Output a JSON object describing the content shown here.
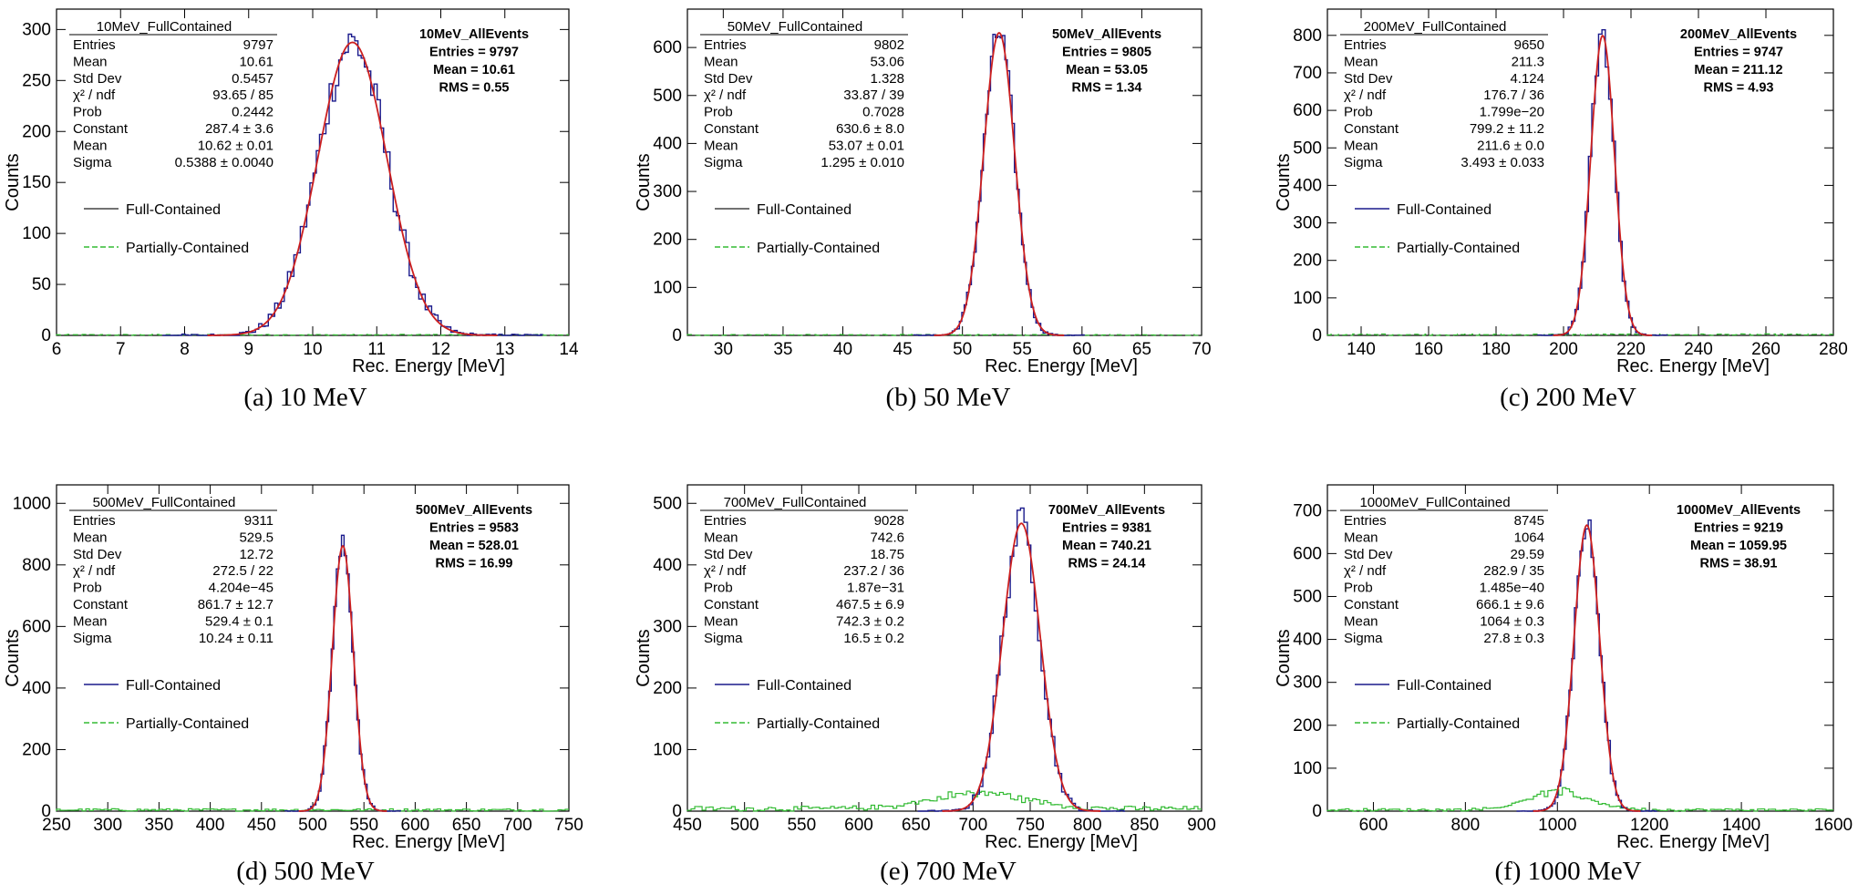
{
  "panels": [
    {
      "caption": "(a)  10 MeV",
      "stats_title": "10MeV_FullContained",
      "stats": [
        {
          "label": "Entries",
          "value": "9797"
        },
        {
          "label": "Mean",
          "value": "10.61"
        },
        {
          "label": "Std Dev",
          "value": "0.5457"
        },
        {
          "label": "χ² / ndf",
          "value": "93.65 / 85"
        },
        {
          "label": "Prob",
          "value": "0.2442"
        },
        {
          "label": "Constant",
          "value": "287.4 ± 3.6"
        },
        {
          "label": "Mean",
          "value": "10.62 ± 0.01"
        },
        {
          "label": "Sigma",
          "value": "0.5388 ± 0.0040"
        }
      ],
      "all_events": [
        "10MeV_AllEvents",
        "Entries = 9797",
        "Mean = 10.61",
        "RMS = 0.55"
      ],
      "legend": [
        "Full-Contained",
        "Partially-Contained"
      ]
    },
    {
      "caption": "(b)  50 MeV",
      "stats_title": "50MeV_FullContained",
      "stats": [
        {
          "label": "Entries",
          "value": "9802"
        },
        {
          "label": "Mean",
          "value": "53.06"
        },
        {
          "label": "Std Dev",
          "value": "1.328"
        },
        {
          "label": "χ² / ndf",
          "value": "33.87 / 39"
        },
        {
          "label": "Prob",
          "value": "0.7028"
        },
        {
          "label": "Constant",
          "value": "630.6 ± 8.0"
        },
        {
          "label": "Mean",
          "value": "53.07 ± 0.01"
        },
        {
          "label": "Sigma",
          "value": "1.295 ± 0.010"
        }
      ],
      "all_events": [
        "50MeV_AllEvents",
        "Entries = 9805",
        "Mean = 53.05",
        "RMS = 1.34"
      ],
      "legend": [
        "Full-Contained",
        "Partially-Contained"
      ]
    },
    {
      "caption": "(c)  200 MeV",
      "stats_title": "200MeV_FullContained",
      "stats": [
        {
          "label": "Entries",
          "value": "9650"
        },
        {
          "label": "Mean",
          "value": "211.3"
        },
        {
          "label": "Std Dev",
          "value": "4.124"
        },
        {
          "label": "χ² / ndf",
          "value": "176.7 / 36"
        },
        {
          "label": "Prob",
          "value": "1.799e−20"
        },
        {
          "label": "Constant",
          "value": "799.2 ± 11.2"
        },
        {
          "label": "Mean",
          "value": "211.6 ± 0.0"
        },
        {
          "label": "Sigma",
          "value": "3.493 ± 0.033"
        }
      ],
      "all_events": [
        "200MeV_AllEvents",
        "Entries = 9747",
        "Mean = 211.12",
        "RMS = 4.93"
      ],
      "legend": [
        "Full-Contained",
        "Partially-Contained"
      ]
    },
    {
      "caption": "(d)  500 MeV",
      "stats_title": "500MeV_FullContained",
      "stats": [
        {
          "label": "Entries",
          "value": "9311"
        },
        {
          "label": "Mean",
          "value": "529.5"
        },
        {
          "label": "Std Dev",
          "value": "12.72"
        },
        {
          "label": "χ² / ndf",
          "value": "272.5 / 22"
        },
        {
          "label": "Prob",
          "value": "4.204e−45"
        },
        {
          "label": "Constant",
          "value": "861.7 ± 12.7"
        },
        {
          "label": "Mean",
          "value": "529.4 ± 0.1"
        },
        {
          "label": "Sigma",
          "value": "10.24 ± 0.11"
        }
      ],
      "all_events": [
        "500MeV_AllEvents",
        "Entries = 9583",
        "Mean = 528.01",
        "RMS = 16.99"
      ],
      "legend": [
        "Full-Contained",
        "Partially-Contained"
      ]
    },
    {
      "caption": "(e)  700 MeV",
      "stats_title": "700MeV_FullContained",
      "stats": [
        {
          "label": "Entries",
          "value": "9028"
        },
        {
          "label": "Mean",
          "value": "742.6"
        },
        {
          "label": "Std Dev",
          "value": "18.75"
        },
        {
          "label": "χ² / ndf",
          "value": "237.2 / 36"
        },
        {
          "label": "Prob",
          "value": "1.87e−31"
        },
        {
          "label": "Constant",
          "value": "467.5 ± 6.9"
        },
        {
          "label": "Mean",
          "value": "742.3 ± 0.2"
        },
        {
          "label": "Sigma",
          "value": "16.5 ± 0.2"
        }
      ],
      "all_events": [
        "700MeV_AllEvents",
        "Entries = 9381",
        "Mean = 740.21",
        "RMS = 24.14"
      ],
      "legend": [
        "Full-Contained",
        "Partially-Contained"
      ]
    },
    {
      "caption": "(f) 1000 MeV",
      "stats_title": "1000MeV_FullContained",
      "stats": [
        {
          "label": "Entries",
          "value": "8745"
        },
        {
          "label": "Mean",
          "value": "1064"
        },
        {
          "label": "Std Dev",
          "value": "29.59"
        },
        {
          "label": "χ² / ndf",
          "value": "282.9 / 35"
        },
        {
          "label": "Prob",
          "value": "1.485e−40"
        },
        {
          "label": "Constant",
          "value": "666.1 ± 9.6"
        },
        {
          "label": "Mean",
          "value": "1064 ± 0.3"
        },
        {
          "label": "Sigma",
          "value": "27.8 ± 0.3"
        }
      ],
      "all_events": [
        "1000MeV_AllEvents",
        "Entries = 9219",
        "Mean = 1059.95",
        "RMS = 38.91"
      ],
      "legend": [
        "Full-Contained",
        "Partially-Contained"
      ]
    }
  ],
  "colors": {
    "full_contained": "#1a1a8c",
    "partially_contained": "#33bb33",
    "fit": "#cc1f1f",
    "legend_full_a_b": "#444444"
  },
  "chart_data": [
    {
      "type": "histogram",
      "xlabel": "Rec. Energy [MeV]",
      "ylabel": "Counts",
      "xlim": [
        6,
        14
      ],
      "ylim": [
        0,
        320
      ],
      "xticks": [
        6,
        7,
        8,
        9,
        10,
        11,
        12,
        13,
        14
      ],
      "yticks": [
        0,
        50,
        100,
        150,
        200,
        250,
        300
      ],
      "series": [
        {
          "name": "Full-Contained",
          "kind": "histogram",
          "gauss_constant": 287.4,
          "gauss_mean": 10.62,
          "gauss_sigma": 0.5388,
          "bin_width": 0.05
        },
        {
          "name": "Partially-Contained",
          "kind": "histogram",
          "level": 1
        },
        {
          "kind": "gaussian-fit",
          "constant": 287.4,
          "mean": 10.62,
          "sigma": 0.5388
        }
      ]
    },
    {
      "type": "histogram",
      "xlabel": "Rec. Energy [MeV]",
      "ylabel": "Counts",
      "xlim": [
        27,
        70
      ],
      "ylim": [
        0,
        680
      ],
      "xticks": [
        30,
        35,
        40,
        45,
        50,
        55,
        60,
        65,
        70
      ],
      "yticks": [
        0,
        100,
        200,
        300,
        400,
        500,
        600
      ],
      "series": [
        {
          "name": "Full-Contained",
          "kind": "histogram",
          "gauss_constant": 630.6,
          "gauss_mean": 53.07,
          "gauss_sigma": 1.295,
          "bin_width": 0.2
        },
        {
          "name": "Partially-Contained",
          "kind": "histogram",
          "level": 2
        },
        {
          "kind": "gaussian-fit",
          "constant": 630.6,
          "mean": 53.07,
          "sigma": 1.295
        }
      ]
    },
    {
      "type": "histogram",
      "xlabel": "Rec. Energy [MeV]",
      "ylabel": "Counts",
      "xlim": [
        130,
        280
      ],
      "ylim": [
        0,
        870
      ],
      "xticks": [
        140,
        160,
        180,
        200,
        220,
        240,
        260,
        280
      ],
      "yticks": [
        0,
        100,
        200,
        300,
        400,
        500,
        600,
        700,
        800
      ],
      "series": [
        {
          "name": "Full-Contained",
          "kind": "histogram",
          "gauss_constant": 799.2,
          "gauss_mean": 211.6,
          "gauss_sigma": 3.493,
          "bin_width": 1
        },
        {
          "name": "Partially-Contained",
          "kind": "histogram",
          "level": 4
        },
        {
          "kind": "gaussian-fit",
          "constant": 799.2,
          "mean": 211.6,
          "sigma": 3.493
        }
      ]
    },
    {
      "type": "histogram",
      "xlabel": "Rec. Energy [MeV]",
      "ylabel": "Counts",
      "xlim": [
        250,
        750
      ],
      "ylim": [
        0,
        1060
      ],
      "xticks": [
        250,
        300,
        350,
        400,
        450,
        500,
        550,
        600,
        650,
        700,
        750
      ],
      "yticks": [
        0,
        200,
        400,
        600,
        800,
        1000
      ],
      "series": [
        {
          "name": "Full-Contained",
          "kind": "histogram",
          "gauss_constant": 861.7,
          "gauss_mean": 529.4,
          "gauss_sigma": 10.24,
          "bin_width": 2.5
        },
        {
          "name": "Partially-Contained",
          "kind": "histogram",
          "level": 8
        },
        {
          "kind": "gaussian-fit",
          "constant": 861.7,
          "mean": 529.4,
          "sigma": 10.24
        }
      ]
    },
    {
      "type": "histogram",
      "xlabel": "Rec. Energy [MeV]",
      "ylabel": "Counts",
      "xlim": [
        450,
        900
      ],
      "ylim": [
        0,
        530
      ],
      "xticks": [
        450,
        500,
        550,
        600,
        650,
        700,
        750,
        800,
        850,
        900
      ],
      "yticks": [
        0,
        100,
        200,
        300,
        400,
        500
      ],
      "series": [
        {
          "name": "Full-Contained",
          "kind": "histogram",
          "gauss_constant": 467.5,
          "gauss_mean": 742.3,
          "gauss_sigma": 16.5,
          "bin_width": 3
        },
        {
          "name": "Partially-Contained",
          "kind": "histogram",
          "level": 8,
          "bump_amplitude": 25
        },
        {
          "kind": "gaussian-fit",
          "constant": 467.5,
          "mean": 742.3,
          "sigma": 16.5
        }
      ]
    },
    {
      "type": "histogram",
      "xlabel": "Rec. Energy [MeV]",
      "ylabel": "Counts",
      "xlim": [
        500,
        1600
      ],
      "ylim": [
        0,
        760
      ],
      "xticks": [
        600,
        800,
        1000,
        1200,
        1400,
        1600
      ],
      "yticks": [
        0,
        100,
        200,
        300,
        400,
        500,
        600,
        700
      ],
      "series": [
        {
          "name": "Full-Contained",
          "kind": "histogram",
          "gauss_constant": 666.1,
          "gauss_mean": 1064,
          "gauss_sigma": 27.8,
          "bin_width": 6
        },
        {
          "name": "Partially-Contained",
          "kind": "histogram",
          "level": 6,
          "bump_amplitude": 40
        },
        {
          "kind": "gaussian-fit",
          "constant": 666.1,
          "mean": 1064,
          "sigma": 27.8
        }
      ]
    }
  ]
}
